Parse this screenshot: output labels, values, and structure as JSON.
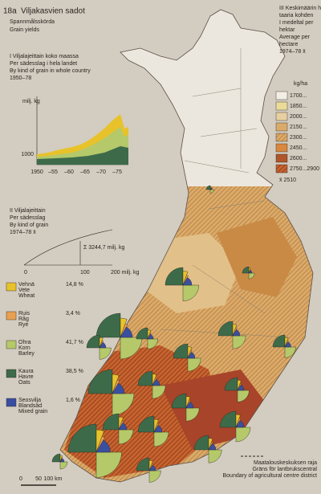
{
  "header": {
    "number": "18a",
    "title": "Viljakasvien sadot",
    "subtitle_sv": "Spannmålsskörda",
    "subtitle_en": "Grain yields"
  },
  "section1": {
    "lines": [
      "I  Viljalajeittain koko maassa",
      "Per sädesslag i hela landet",
      "By kind of grain in whole country",
      "1950–78"
    ],
    "unit": "milj. kg",
    "y_label": "1000",
    "x_labels": [
      "1950",
      "–55",
      "–60",
      "–65",
      "–70",
      "–75"
    ]
  },
  "section2": {
    "lines": [
      "II  Viljalajeittain",
      "Per sädesslag",
      "By kind of grain",
      "1974–78 x̄"
    ],
    "total": "Σ 3244,7 milj. kg",
    "axis_labels": [
      "0",
      "100",
      "200 milj. kg"
    ]
  },
  "grain_legend": [
    {
      "fi": "Vehnä",
      "sv": "Vete",
      "en": "Wheat",
      "share": "14,8 %"
    },
    {
      "fi": "Ruis",
      "sv": "Råg",
      "en": "Rye",
      "share": "3,4 %"
    },
    {
      "fi": "Ohra",
      "sv": "Korn",
      "en": "Barley",
      "share": "41,7 %"
    },
    {
      "fi": "Kaura",
      "sv": "Havre",
      "en": "Oats",
      "share": "38,5 %"
    },
    {
      "fi": "Seosvilja",
      "sv": "Blandsäd",
      "en": "Mixed grain",
      "share": "1,6 %"
    }
  ],
  "section3": {
    "lines": [
      "III  Keskimäärin heh-",
      "taaria kohden",
      "I medeltal per",
      "hektar",
      "Average per",
      "hectare",
      "1974–78 x̄"
    ],
    "unit": "kg/ha",
    "classes": [
      "1700...",
      "1850...",
      "2000...",
      "2150...",
      "2300...",
      "2450...",
      "2600...",
      "2750...2900"
    ],
    "mean": "x̄ 2510"
  },
  "boundary": {
    "lines": [
      "Maatalouskeskuksen raja",
      "Gräns för lantbrukscentral",
      "Boundary of agricultural centre district"
    ]
  },
  "scale": {
    "labels": [
      "0",
      "50",
      "100 km"
    ]
  }
}
